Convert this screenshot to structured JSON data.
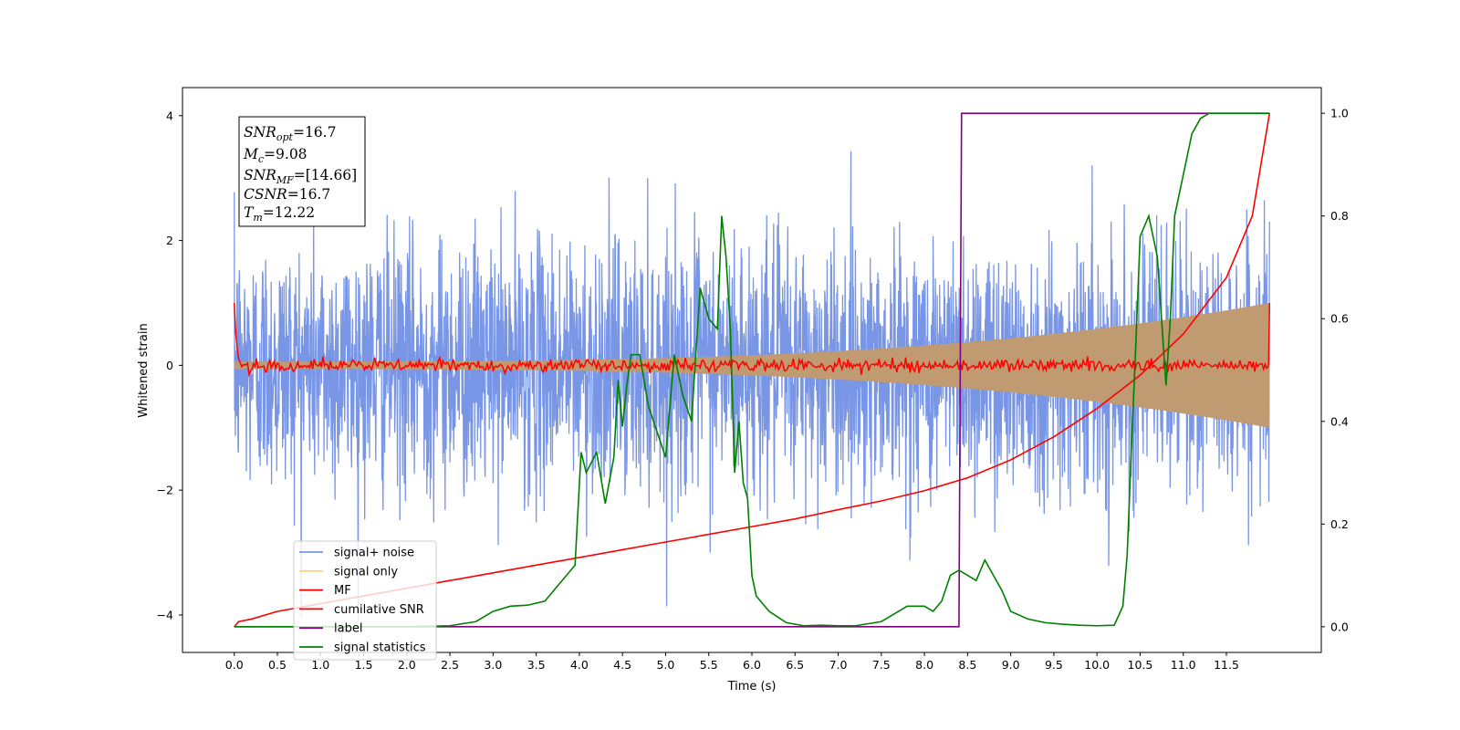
{
  "chart_data": {
    "type": "line",
    "xlabel": "Time (s)",
    "ylabel": "Whitened strain",
    "xlim": [
      -0.6,
      12.6
    ],
    "ylim": [
      -4.6,
      4.45
    ],
    "y2lim": [
      -0.05,
      1.05
    ],
    "x_ticks": [
      "0.0",
      "0.5",
      "1.0",
      "1.5",
      "2.0",
      "2.5",
      "3.0",
      "3.5",
      "4.0",
      "4.5",
      "5.0",
      "5.5",
      "6.0",
      "6.5",
      "7.0",
      "7.5",
      "8.0",
      "8.5",
      "9.0",
      "9.5",
      "10.0",
      "10.5",
      "11.0",
      "11.5"
    ],
    "y_ticks": [
      "4",
      "2",
      "0",
      "−2",
      "−4"
    ],
    "y2_ticks": [
      "1.0",
      "0.8",
      "0.6",
      "0.4",
      "0.2",
      "0.0"
    ],
    "legend_placement": "lower-left",
    "legend": [
      "signal+ noise",
      "signal only",
      "MF",
      "cumilative SNR",
      "label",
      "signal statistics"
    ],
    "info": {
      "snr_opt": {
        "sym": "SNR",
        "sub": "opt",
        "val": "=16.7"
      },
      "mc": {
        "sym": "M",
        "sub": "c",
        "val": "=9.08"
      },
      "snr_mf": {
        "sym": "SNR",
        "sub": "MF",
        "val": "=[14.66]"
      },
      "csnr": {
        "sym": "CSNR",
        "val": "=16.7"
      },
      "tm": {
        "sym": "T",
        "sub": "m",
        "val": "=12.22"
      }
    },
    "series": [
      {
        "name": "signal+ noise",
        "color": "#7895e6",
        "axis": "left",
        "kind": "noise",
        "t_range": [
          0.0,
          12.0
        ],
        "sigma": 1.0,
        "peak_range": [
          -4.1,
          4.1
        ]
      },
      {
        "name": "signal only",
        "color": "#c09a70",
        "axis": "left",
        "kind": "chirp_envelope",
        "t_range": [
          0.0,
          12.0
        ],
        "amplitude_start": 0.06,
        "amplitude_end": 1.0
      },
      {
        "name": "MF",
        "color": "#ff0000",
        "axis": "left",
        "kind": "mf",
        "t_range": [
          0.0,
          12.0
        ],
        "start_value": 1.0,
        "end_value": 1.0,
        "noise_sigma": 0.05
      },
      {
        "name": "cumilative SNR",
        "color": "#ff0000",
        "axis": "right",
        "x": [
          0,
          0.05,
          0.2,
          0.5,
          1,
          1.5,
          2,
          2.5,
          3,
          3.5,
          4,
          4.5,
          5,
          5.5,
          6,
          6.5,
          7,
          7.5,
          8,
          8.5,
          9,
          9.5,
          10,
          10.5,
          11,
          11.5,
          11.8,
          12.0
        ],
        "y": [
          0.0,
          0.01,
          0.015,
          0.03,
          0.045,
          0.06,
          0.075,
          0.09,
          0.105,
          0.12,
          0.135,
          0.15,
          0.165,
          0.18,
          0.195,
          0.21,
          0.228,
          0.245,
          0.265,
          0.29,
          0.325,
          0.37,
          0.425,
          0.49,
          0.57,
          0.68,
          0.8,
          1.0
        ]
      },
      {
        "name": "label",
        "color": "#800080",
        "axis": "right",
        "x": [
          0,
          8.4,
          8.43,
          12.0
        ],
        "y": [
          0,
          0,
          1,
          1
        ]
      },
      {
        "name": "signal statistics",
        "color": "#008000",
        "axis": "right",
        "x": [
          0,
          1,
          2,
          2.5,
          2.8,
          3.0,
          3.2,
          3.4,
          3.6,
          3.8,
          3.95,
          4.02,
          4.08,
          4.2,
          4.3,
          4.4,
          4.45,
          4.5,
          4.55,
          4.6,
          4.7,
          4.8,
          4.9,
          5.0,
          5.1,
          5.2,
          5.3,
          5.4,
          5.5,
          5.6,
          5.65,
          5.7,
          5.75,
          5.8,
          5.85,
          5.9,
          5.95,
          6.0,
          6.05,
          6.1,
          6.2,
          6.4,
          6.6,
          6.8,
          7.0,
          7.2,
          7.5,
          7.8,
          8.0,
          8.1,
          8.2,
          8.3,
          8.4,
          8.5,
          8.6,
          8.7,
          8.8,
          8.9,
          9.0,
          9.2,
          9.4,
          9.6,
          9.8,
          10.0,
          10.2,
          10.3,
          10.35,
          10.4,
          10.45,
          10.5,
          10.6,
          10.7,
          10.8,
          10.85,
          10.9,
          11.0,
          11.1,
          11.2,
          11.3,
          11.5,
          11.7,
          12.0
        ],
        "y": [
          0,
          0,
          0,
          0.002,
          0.01,
          0.03,
          0.04,
          0.042,
          0.05,
          0.09,
          0.12,
          0.34,
          0.3,
          0.34,
          0.24,
          0.33,
          0.48,
          0.39,
          0.47,
          0.53,
          0.53,
          0.43,
          0.38,
          0.33,
          0.53,
          0.45,
          0.4,
          0.66,
          0.6,
          0.58,
          0.8,
          0.72,
          0.58,
          0.3,
          0.4,
          0.28,
          0.25,
          0.1,
          0.06,
          0.05,
          0.03,
          0.008,
          0.002,
          0.003,
          0.002,
          0.002,
          0.01,
          0.04,
          0.04,
          0.03,
          0.05,
          0.1,
          0.11,
          0.1,
          0.09,
          0.13,
          0.1,
          0.07,
          0.03,
          0.015,
          0.008,
          0.005,
          0.003,
          0.002,
          0.003,
          0.04,
          0.14,
          0.35,
          0.55,
          0.76,
          0.8,
          0.72,
          0.47,
          0.6,
          0.8,
          0.88,
          0.96,
          0.99,
          1.0,
          1.0,
          1.0,
          1.0
        ]
      }
    ]
  }
}
